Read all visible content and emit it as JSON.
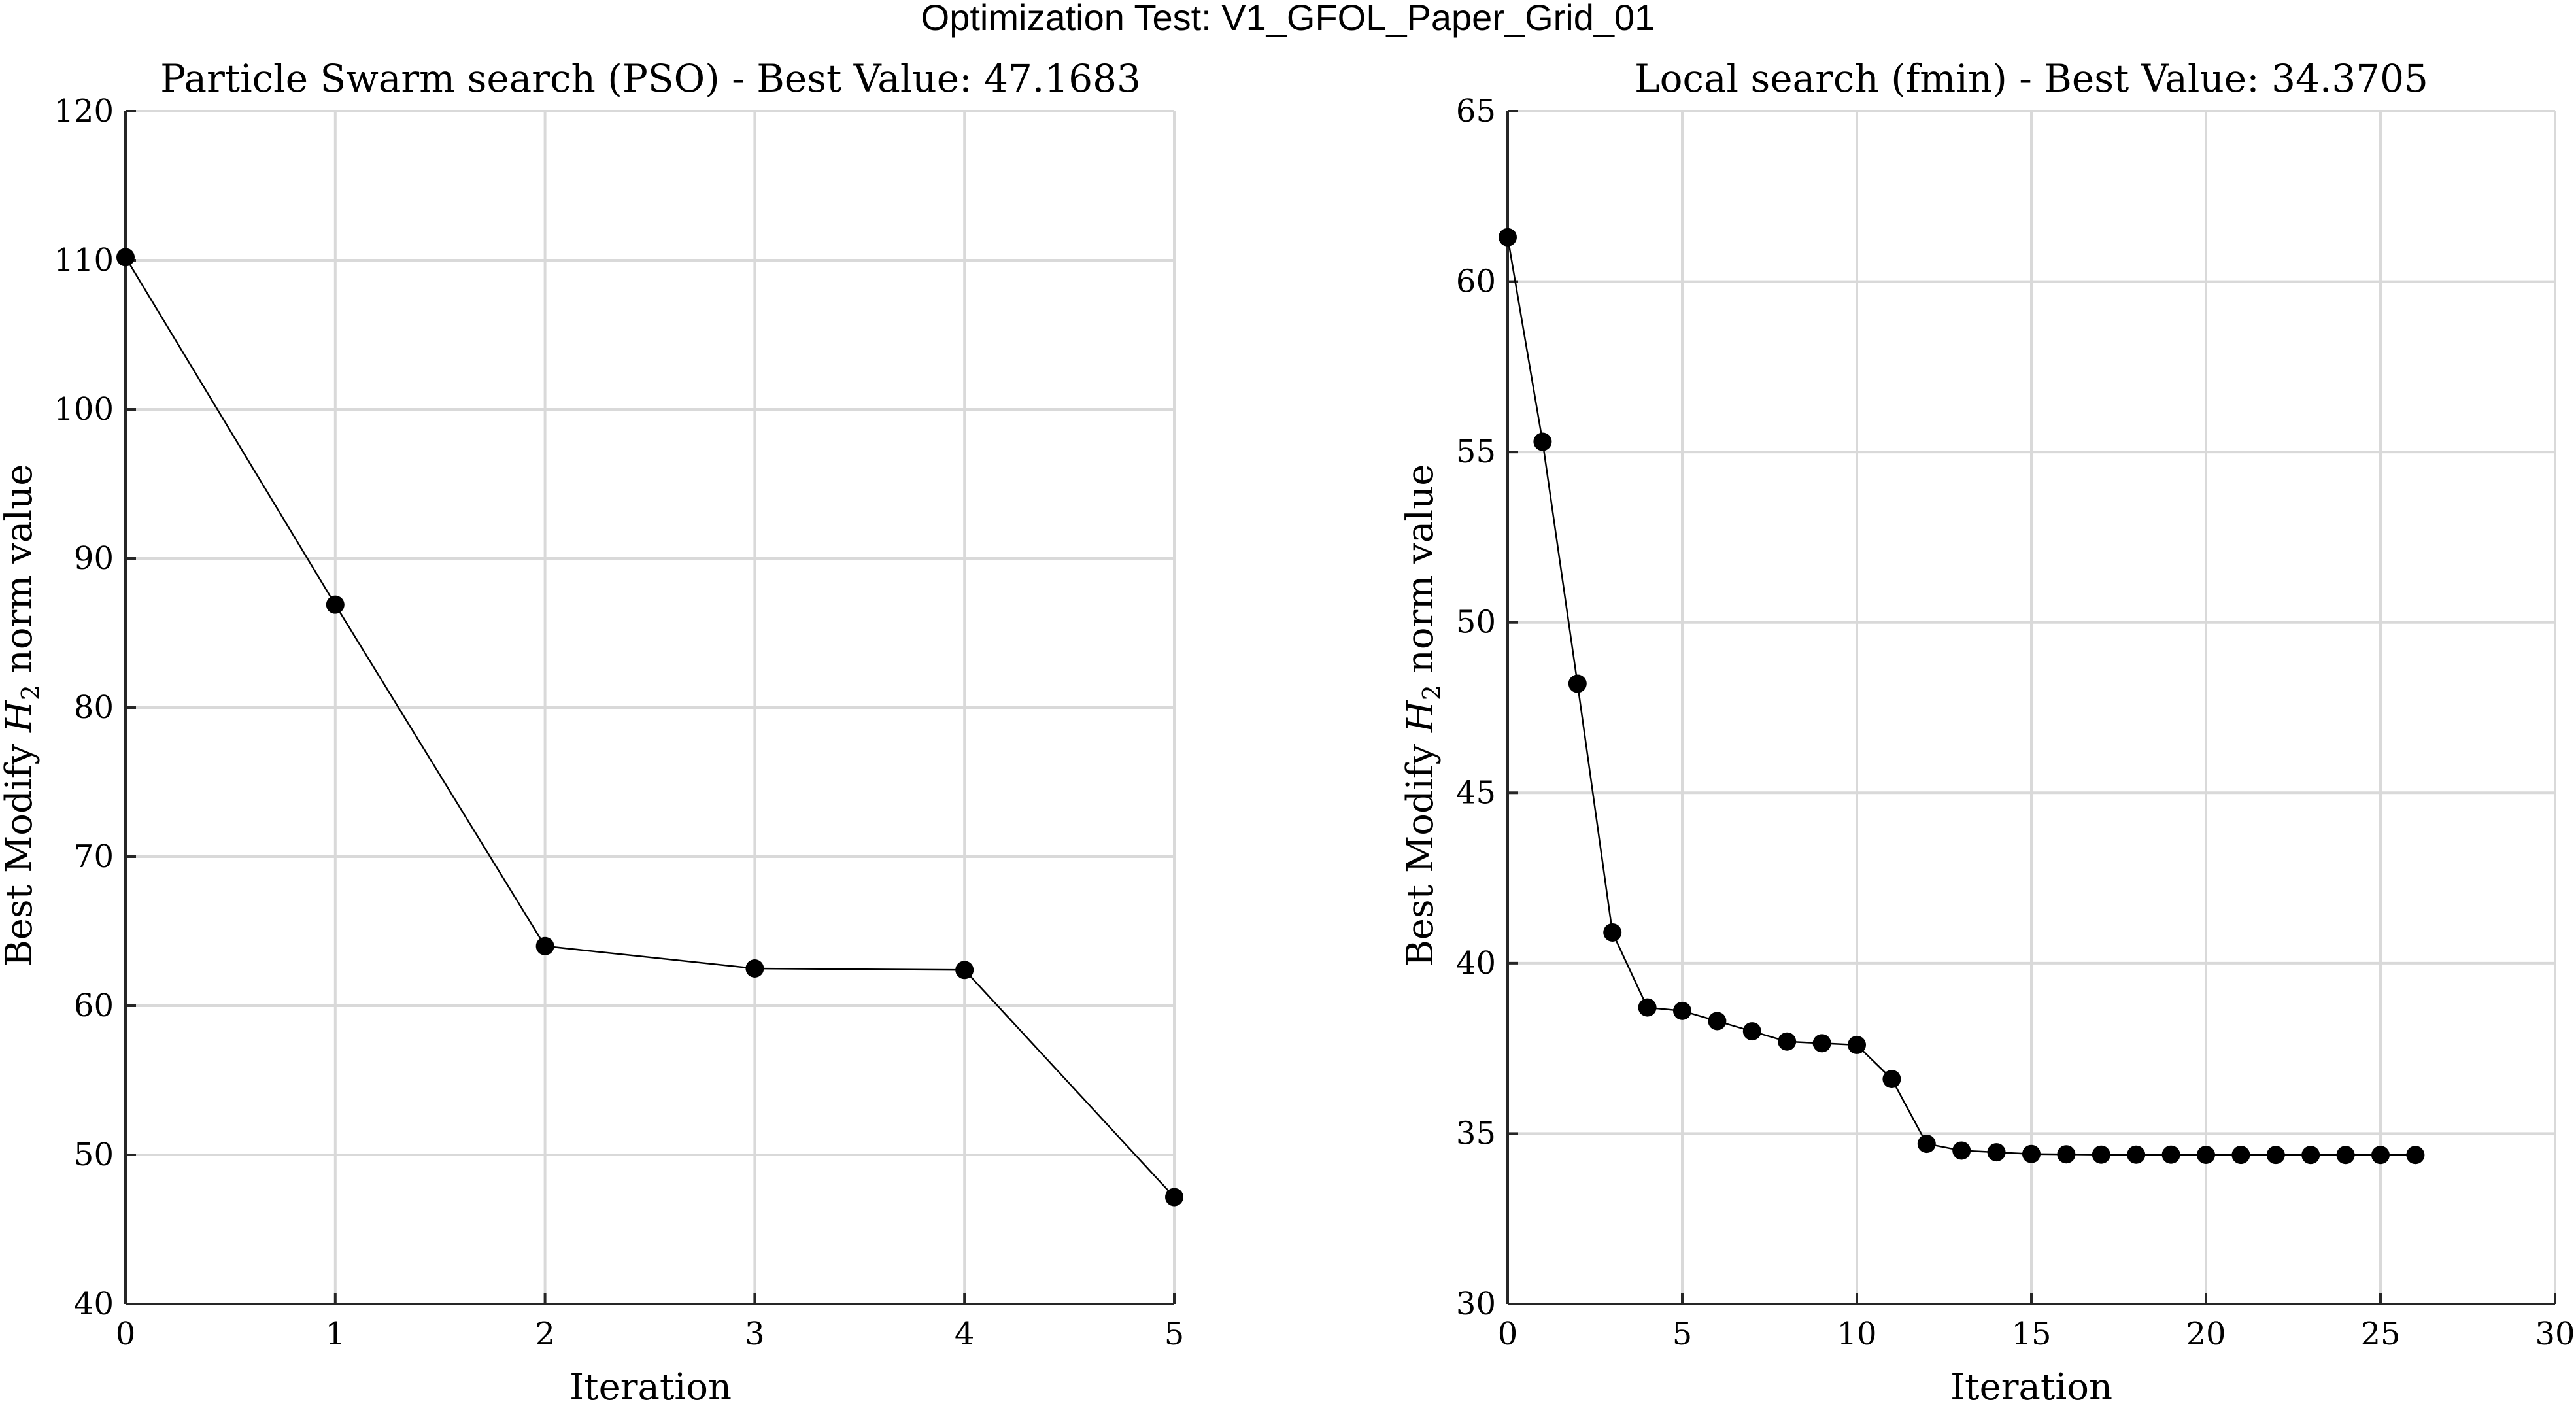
{
  "figure": {
    "suptitle": "Optimization Test: V1_GFOL_Paper_Grid_01"
  },
  "chart_data": [
    {
      "type": "line",
      "title": "Particle Swarm search (PSO) - Best Value: 47.1683",
      "xlabel": "Iteration",
      "ylabel_prefix": "Best Modify ",
      "ylabel_symbol": "H",
      "ylabel_subscript": "2",
      "ylabel_suffix": " norm value",
      "xlim": [
        0,
        5
      ],
      "ylim": [
        40,
        120
      ],
      "xticks": [
        0,
        1,
        2,
        3,
        4,
        5
      ],
      "yticks": [
        40,
        50,
        60,
        70,
        80,
        90,
        100,
        110,
        120
      ],
      "grid": true,
      "marker": "filled-circle",
      "color": "#000000",
      "series": [
        {
          "x": [
            0,
            1,
            2,
            3,
            4,
            5
          ],
          "y": [
            110.2,
            86.9,
            64.0,
            62.5,
            62.4,
            47.1683
          ]
        }
      ]
    },
    {
      "type": "line",
      "title": "Local search (fmin) - Best Value: 34.3705",
      "xlabel": "Iteration",
      "ylabel_prefix": "Best Modify ",
      "ylabel_symbol": "H",
      "ylabel_subscript": "2",
      "ylabel_suffix": " norm value",
      "xlim": [
        0,
        30
      ],
      "ylim": [
        30,
        65
      ],
      "xticks": [
        0,
        5,
        10,
        15,
        20,
        25,
        30
      ],
      "yticks": [
        30,
        35,
        40,
        45,
        50,
        55,
        60,
        65
      ],
      "grid": true,
      "marker": "filled-circle",
      "color": "#000000",
      "series": [
        {
          "x": [
            0,
            1,
            2,
            3,
            4,
            5,
            6,
            7,
            8,
            9,
            10,
            11,
            12,
            13,
            14,
            15,
            16,
            17,
            18,
            19,
            20,
            21,
            22,
            23,
            24,
            25,
            26
          ],
          "y": [
            61.3,
            55.3,
            48.2,
            40.9,
            38.7,
            38.6,
            38.3,
            38.0,
            37.7,
            37.65,
            37.6,
            36.6,
            34.7,
            34.5,
            34.45,
            34.4,
            34.39,
            34.38,
            34.38,
            34.38,
            34.375,
            34.373,
            34.372,
            34.371,
            34.371,
            34.3705,
            34.3705
          ]
        }
      ]
    }
  ]
}
